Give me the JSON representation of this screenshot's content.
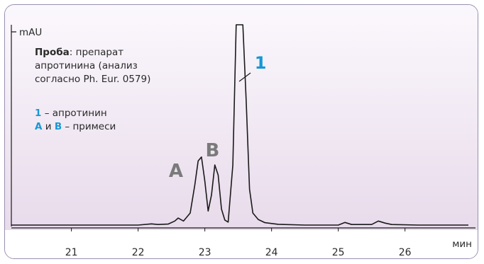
{
  "chart_data": {
    "type": "line",
    "title": "",
    "ylabel": "mAU",
    "xlabel": "мин",
    "xlim": [
      20.1,
      26.95
    ],
    "ylim": [
      0,
      100
    ],
    "xticks": [
      21,
      22,
      23,
      24,
      25,
      26
    ],
    "xtick_labels": [
      "21",
      "22",
      "23",
      "24",
      "25",
      "26"
    ],
    "series": [
      {
        "x": [
          20.1,
          20.6,
          21.0,
          21.5,
          22.0,
          22.2,
          22.3,
          22.45,
          22.55,
          22.6,
          22.68,
          22.78,
          22.85,
          22.9,
          22.95,
          23.0,
          23.05,
          23.1,
          23.15,
          23.2,
          23.25,
          23.3,
          23.35,
          23.42,
          23.47,
          23.52,
          23.57,
          23.62,
          23.67,
          23.72,
          23.8,
          23.9,
          24.1,
          24.5,
          25.0,
          25.1,
          25.2,
          25.5,
          25.6,
          25.7,
          25.8,
          26.2,
          26.95
        ],
        "y": [
          0.0,
          0.0,
          0.0,
          0.0,
          0.0,
          0.6,
          0.3,
          0.5,
          2.0,
          3.5,
          2.0,
          6.0,
          20.0,
          32.0,
          34.0,
          22.0,
          7.0,
          15.0,
          30.0,
          25.0,
          8.0,
          2.5,
          1.5,
          30.0,
          100.0,
          100.0,
          100.0,
          62.0,
          18.0,
          6.0,
          2.8,
          1.2,
          0.4,
          0.0,
          0.0,
          1.3,
          0.3,
          0.3,
          2.0,
          1.0,
          0.3,
          0.0,
          0.0
        ]
      }
    ],
    "annotations": [
      {
        "text": "A",
        "x": 22.95
      },
      {
        "text": "B",
        "x": 23.2
      },
      {
        "text": "1",
        "x": 23.6
      }
    ]
  },
  "info": {
    "sample_label": "Проба",
    "sample_line1": ": препарат",
    "sample_line2": "апротинина (анализ",
    "sample_line3": "согласно Ph. Eur. 0579)",
    "legend1_num": "1",
    "legend1_text": " – апротинин",
    "legend2_a": "A",
    "legend2_and": " и ",
    "legend2_b": "B",
    "legend2_text": " – примеси"
  },
  "colors": {
    "trace": "#1a1a1a",
    "peak_label_gray": "#7a7a7a",
    "peak_label_blue": "#1598d4",
    "frame": "#9a8fb0"
  }
}
